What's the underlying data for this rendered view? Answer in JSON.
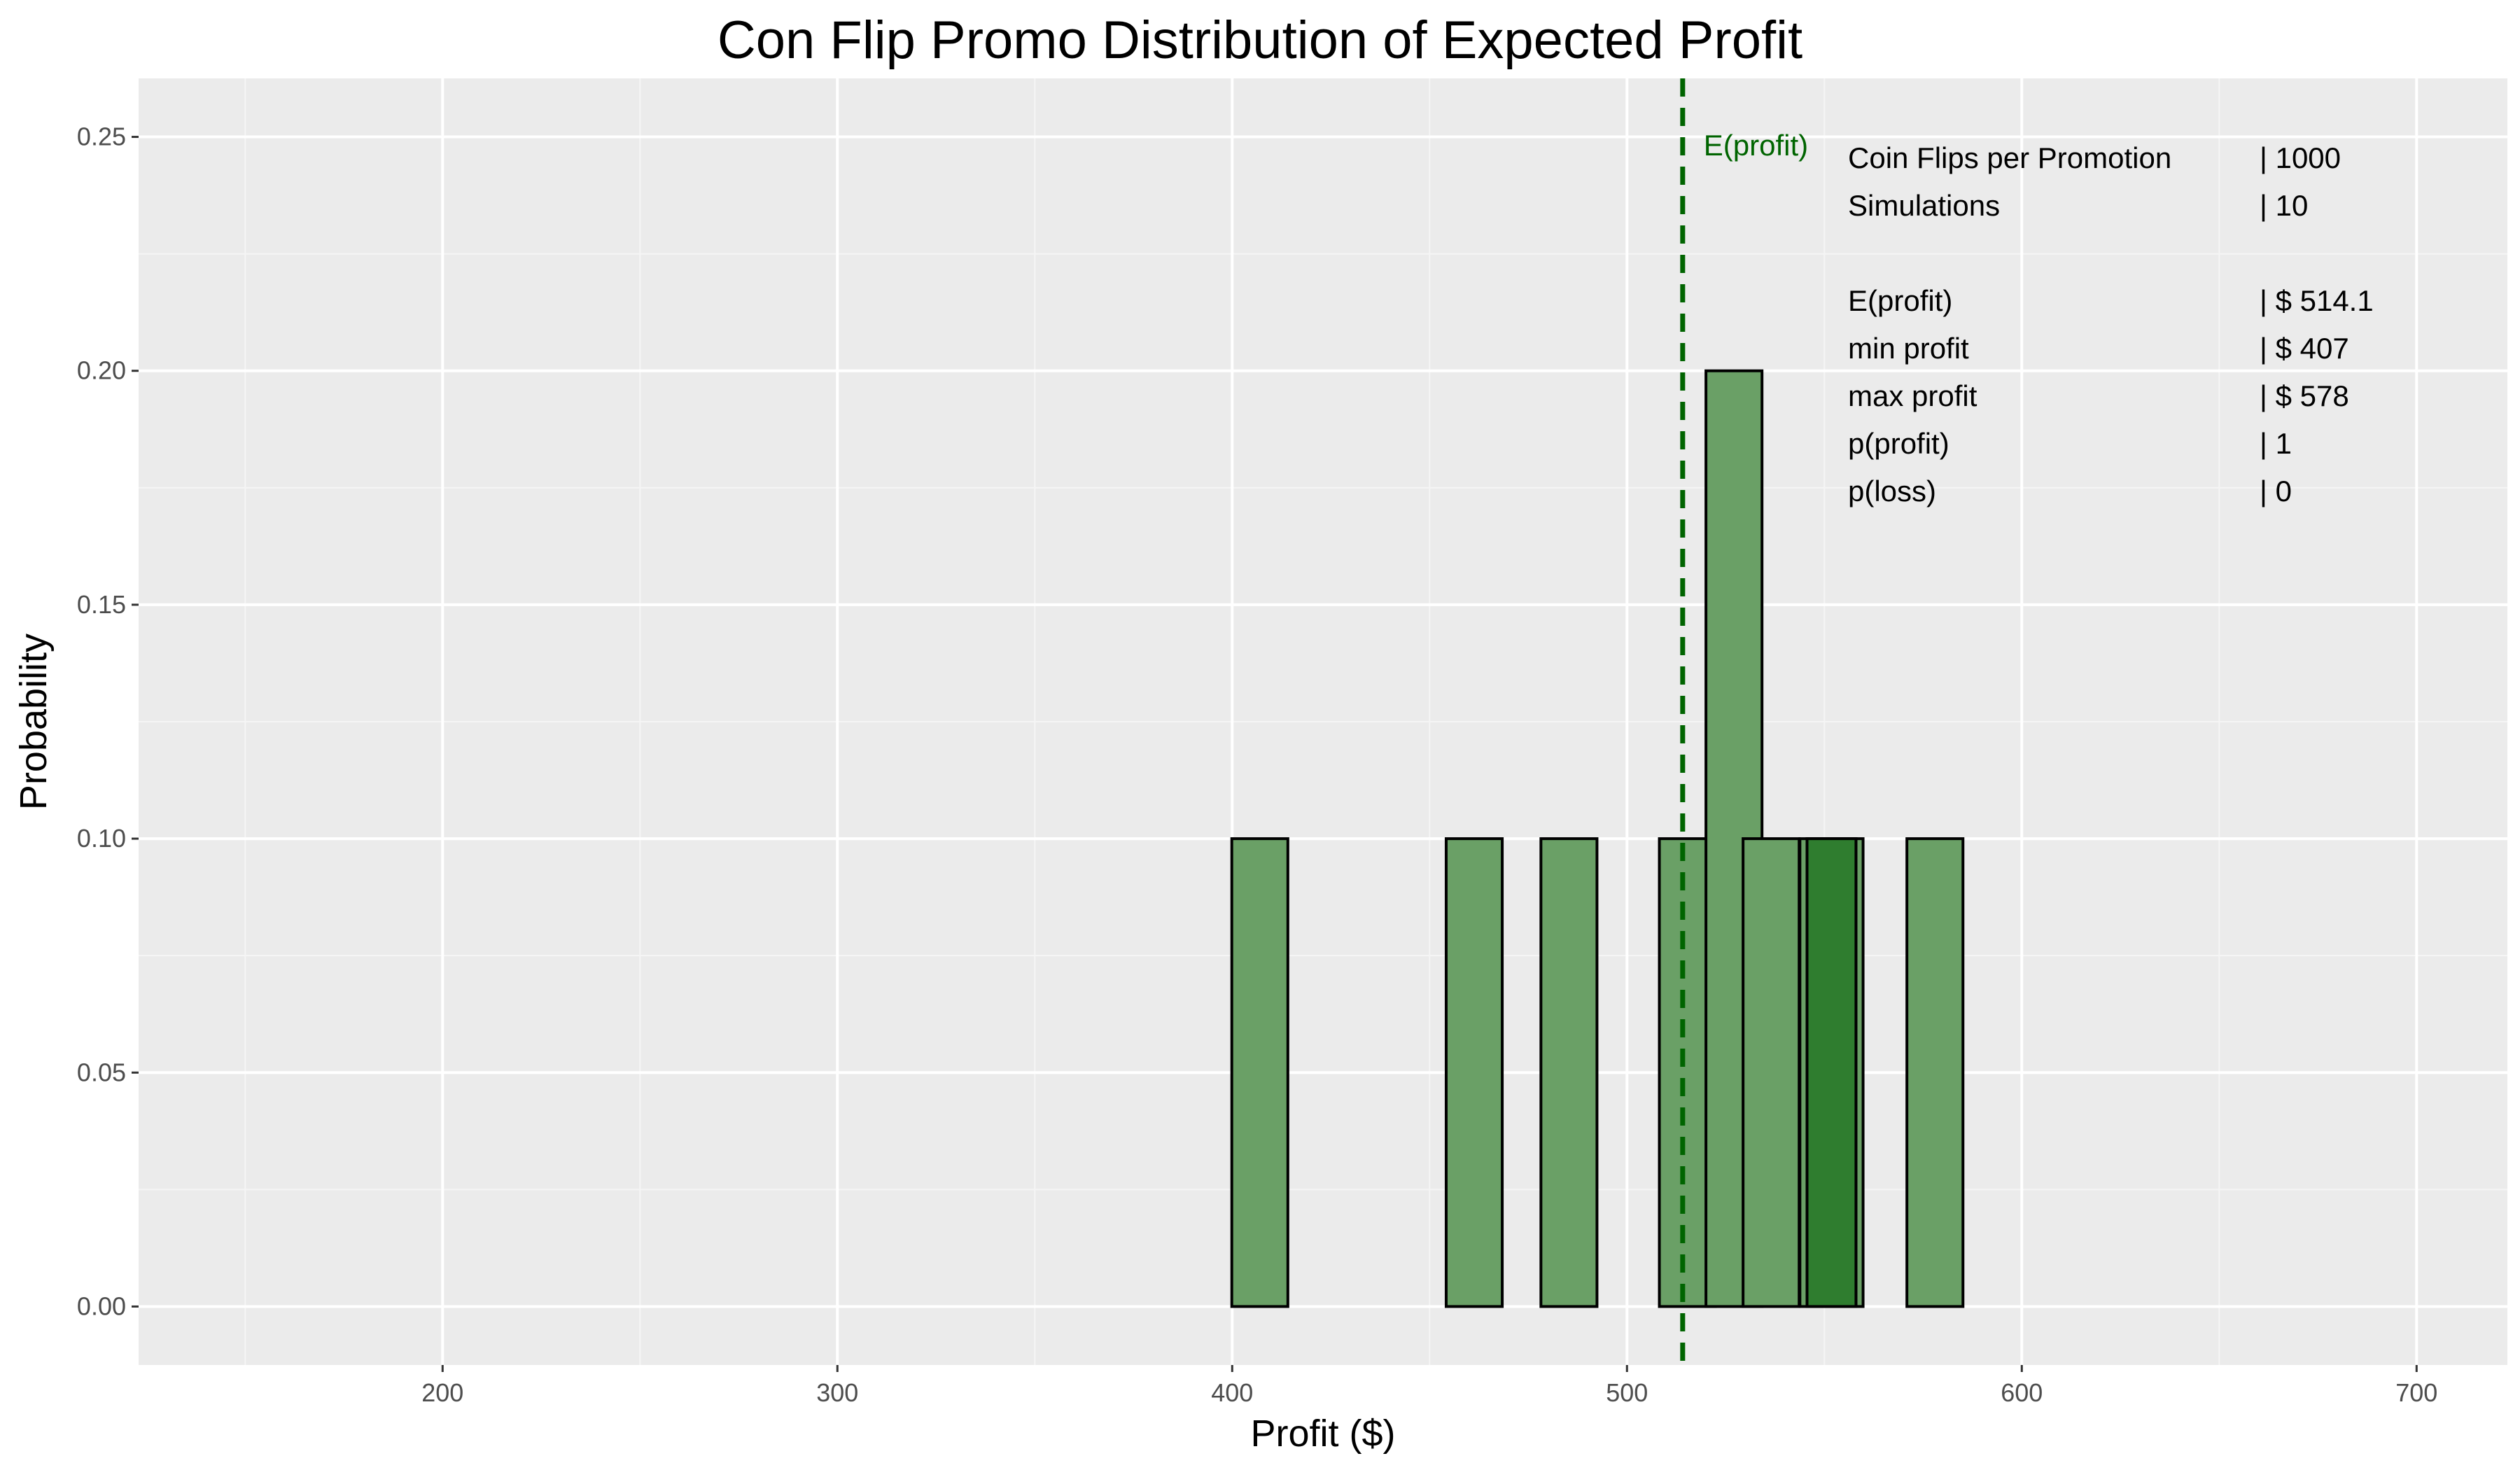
{
  "chart_data": {
    "type": "bar",
    "title": "Con Flip Promo Distribution of Expected Profit",
    "xlabel": "Profit ($)",
    "ylabel": "Probability",
    "xlim": [
      123,
      723
    ],
    "ylim": [
      -0.0125,
      0.2625
    ],
    "x_ticks": [
      200,
      300,
      400,
      500,
      600,
      700
    ],
    "x_tick_labels": [
      "200",
      "300",
      "400",
      "500",
      "600",
      "700"
    ],
    "y_ticks": [
      0.0,
      0.05,
      0.1,
      0.15,
      0.2,
      0.25
    ],
    "y_tick_labels": [
      "0.00",
      "0.05",
      "0.10",
      "0.15",
      "0.20",
      "0.25"
    ],
    "grid": true,
    "bar_width": 14.2,
    "bars": [
      {
        "x": 407,
        "value": 0.1
      },
      {
        "x": 461.3,
        "value": 0.1
      },
      {
        "x": 485.3,
        "value": 0.1
      },
      {
        "x": 515.3,
        "value": 0.1
      },
      {
        "x": 527.1,
        "value": 0.2
      },
      {
        "x": 536.5,
        "value": 0.1
      },
      {
        "x": 552.7,
        "value": 0.1
      },
      {
        "x": 550.9,
        "value": 0.1
      },
      {
        "x": 578,
        "value": 0.1
      }
    ],
    "mean_line": {
      "x": 514.1,
      "label": "E(profit)",
      "color": "#006400"
    },
    "bar_fill": "#6aa066",
    "bar_overlap_fill": "#2f7d2f",
    "panel_background": "#ebebeb"
  },
  "info_panel": {
    "rows": [
      {
        "label": "Coin Flips per Promotion",
        "value": "|  1000"
      },
      {
        "label": "Simulations",
        "value": "|  10"
      },
      {
        "label": "",
        "value": ""
      },
      {
        "label": "E(profit)",
        "value": "| $ 514.1"
      },
      {
        "label": "min profit",
        "value": "| $ 407"
      },
      {
        "label": "max profit",
        "value": "| $ 578"
      },
      {
        "label": "p(profit)",
        "value": "|  1"
      },
      {
        "label": "p(loss)",
        "value": "|  0"
      }
    ]
  }
}
